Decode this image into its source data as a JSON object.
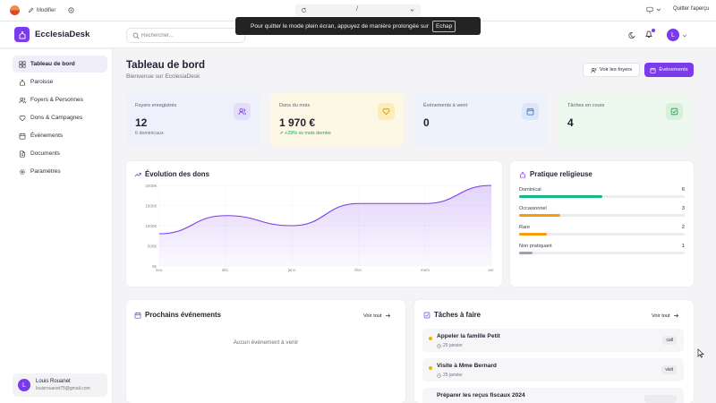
{
  "browser": {
    "edit_label": "Modifier",
    "url_text": "/",
    "quit_label": "Quitter l'aperçu",
    "fullscreen_notice": "Pour quitter le mode plein écran, appuyez de manière prolongée sur",
    "fullscreen_key": "Echap"
  },
  "app": {
    "name": "EcclesiaDesk",
    "search_placeholder": "Rechercher...",
    "user_initial": "L"
  },
  "sidebar": {
    "items": [
      {
        "label": "Tableau de bord",
        "icon": "grid-icon",
        "active": true
      },
      {
        "label": "Paroisse",
        "icon": "church-icon"
      },
      {
        "label": "Foyers & Personnes",
        "icon": "users-icon"
      },
      {
        "label": "Dons & Campagnes",
        "icon": "heart-icon"
      },
      {
        "label": "Événements",
        "icon": "calendar-icon"
      },
      {
        "label": "Documents",
        "icon": "document-icon"
      },
      {
        "label": "Paramètres",
        "icon": "gear-icon"
      }
    ],
    "user": {
      "initial": "L",
      "name": "Louis Rouanet",
      "email": "louisrouanet75@gmail.com"
    }
  },
  "header": {
    "title": "Tableau de bord",
    "subtitle": "Bienvenue sur EcclesiaDesk",
    "view_households_label": "Voir les foyers",
    "events_button_label": "Événements"
  },
  "stats": [
    {
      "label": "Foyers enregistrés",
      "value": "12",
      "sub": "6 dominicaux",
      "icon": "users-icon",
      "bg": "#eef0fb",
      "icon_bg": "#e3defa",
      "icon_color": "#7c3aed"
    },
    {
      "label": "Dons du mois",
      "value": "1 970 €",
      "sub": "+29% vs mois dernier",
      "icon": "heart-icon",
      "bg": "#fdf8e6",
      "icon_bg": "#fbedb8",
      "icon_color": "#ca8a04"
    },
    {
      "label": "Événements à venir",
      "value": "0",
      "sub": "",
      "icon": "calendar-icon",
      "bg": "#eef3fb",
      "icon_bg": "#dbe6f8",
      "icon_color": "#3b6fd1"
    },
    {
      "label": "Tâches en cours",
      "value": "4",
      "sub": "",
      "icon": "check-square-icon",
      "bg": "#edf8ef",
      "icon_bg": "#d6f0dc",
      "icon_color": "#16a34a"
    }
  ],
  "chart_data": {
    "type": "area",
    "title": "Évolution des dons",
    "categories": [
      "nov.",
      "déc.",
      "janv.",
      "févr.",
      "mars",
      "avr."
    ],
    "values": [
      800,
      1250,
      1000,
      1550,
      1550,
      2000
    ],
    "yticks": [
      "0€",
      "500€",
      "1000€",
      "1500€",
      "2000€"
    ],
    "ylim": [
      0,
      2000
    ],
    "grid": true,
    "line_color": "#7c3aed"
  },
  "religious_practice": {
    "title": "Pratique religieuse",
    "rows": [
      {
        "label": "Dominical",
        "count": "6",
        "fraction": 0.5,
        "color": "#10b981"
      },
      {
        "label": "Occasionnel",
        "count": "3",
        "fraction": 0.25,
        "color": "#f59e0b"
      },
      {
        "label": "Rare",
        "count": "2",
        "fraction": 0.167,
        "color": "#f59e0b"
      },
      {
        "label": "Non pratiquant",
        "count": "1",
        "fraction": 0.083,
        "color": "#9ca3af"
      }
    ]
  },
  "events": {
    "title": "Prochains événements",
    "see_all": "Voir tout",
    "empty": "Aucun événement à venir"
  },
  "tasks": {
    "title": "Tâches à faire",
    "see_all": "Voir tout",
    "items": [
      {
        "title": "Appeler la famille Petit",
        "date": "20 janvier",
        "badge": "call"
      },
      {
        "title": "Visite à Mme Bernard",
        "date": "25 janvier",
        "badge": "visit"
      },
      {
        "title": "Préparer les reçus fiscaux 2024",
        "date": "",
        "badge": ""
      }
    ]
  }
}
